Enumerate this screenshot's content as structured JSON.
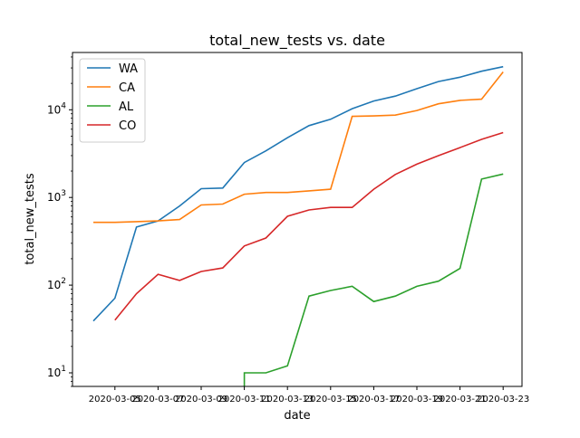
{
  "chart_data": {
    "type": "line",
    "title": "total_new_tests vs. date",
    "xlabel": "date",
    "ylabel": "total_new_tests",
    "y_scale": "log",
    "ylim": [
      7,
      45000
    ],
    "y_ticks": [
      {
        "value": 10,
        "base": "10",
        "exp": "1"
      },
      {
        "value": 100,
        "base": "10",
        "exp": "2"
      },
      {
        "value": 1000,
        "base": "10",
        "exp": "3"
      },
      {
        "value": 10000,
        "base": "10",
        "exp": "4"
      }
    ],
    "x": [
      "2020-03-04",
      "2020-03-05",
      "2020-03-06",
      "2020-03-07",
      "2020-03-08",
      "2020-03-09",
      "2020-03-10",
      "2020-03-11",
      "2020-03-12",
      "2020-03-13",
      "2020-03-14",
      "2020-03-15",
      "2020-03-16",
      "2020-03-17",
      "2020-03-18",
      "2020-03-19",
      "2020-03-20",
      "2020-03-21",
      "2020-03-22",
      "2020-03-23"
    ],
    "x_tick_labels": [
      "2020-03-05",
      "2020-03-07",
      "2020-03-09",
      "2020-03-11",
      "2020-03-13",
      "2020-03-15",
      "2020-03-17",
      "2020-03-19",
      "2020-03-21",
      "2020-03-23"
    ],
    "legend_position": "top-left",
    "grid": false,
    "series": [
      {
        "name": "WA",
        "color": "#1f77b4",
        "values": [
          39,
          71,
          460,
          540,
          800,
          1260,
          1280,
          2500,
          3400,
          4800,
          6600,
          7800,
          10300,
          12600,
          14300,
          17400,
          21000,
          23500,
          27500,
          31000
        ]
      },
      {
        "name": "CA",
        "color": "#ff7f0e",
        "values": [
          520,
          520,
          530,
          540,
          560,
          820,
          840,
          1090,
          1140,
          1140,
          1190,
          1240,
          8400,
          8500,
          8700,
          9800,
          11700,
          12800,
          13200,
          27000
        ]
      },
      {
        "name": "AL",
        "color": "#2ca02c",
        "values": [
          null,
          null,
          null,
          null,
          null,
          null,
          null,
          10,
          10,
          12,
          75,
          87,
          97,
          65,
          75,
          97,
          111,
          155,
          1620,
          1850
        ]
      },
      {
        "name": "CO",
        "color": "#d62728",
        "values": [
          null,
          40,
          80,
          133,
          113,
          143,
          157,
          280,
          345,
          610,
          720,
          770,
          770,
          1240,
          1830,
          2400,
          3000,
          3700,
          4600,
          5500
        ]
      }
    ]
  }
}
